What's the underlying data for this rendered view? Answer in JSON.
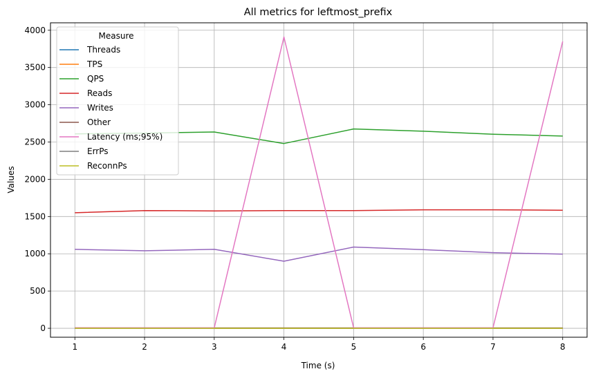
{
  "chart_data": {
    "type": "line",
    "title": "All metrics for leftmost_prefix",
    "xlabel": "Time (s)",
    "ylabel": "Values",
    "x": [
      1,
      2,
      3,
      4,
      5,
      6,
      7,
      8
    ],
    "xlim": [
      0.65,
      8.35
    ],
    "ylim": [
      -120,
      4100
    ],
    "xticks": [
      1,
      2,
      3,
      4,
      5,
      6,
      7,
      8
    ],
    "yticks": [
      0,
      500,
      1000,
      1500,
      2000,
      2500,
      3000,
      3500,
      4000
    ],
    "grid": true,
    "legend": {
      "title": "Measure",
      "placement": "top-left"
    },
    "series": [
      {
        "name": "Threads",
        "color": "#1f77b4",
        "values": [
          4,
          4,
          4,
          4,
          4,
          4,
          4,
          4
        ]
      },
      {
        "name": "TPS",
        "color": "#ff7f0e",
        "values": [
          5,
          4,
          4,
          4,
          4,
          4,
          4,
          4
        ]
      },
      {
        "name": "QPS",
        "color": "#2ca02c",
        "values": [
          2610,
          2620,
          2635,
          2480,
          2675,
          2645,
          2605,
          2580
        ]
      },
      {
        "name": "Reads",
        "color": "#d62728",
        "values": [
          1550,
          1580,
          1575,
          1580,
          1580,
          1590,
          1590,
          1585
        ]
      },
      {
        "name": "Writes",
        "color": "#9467bd",
        "values": [
          1060,
          1040,
          1060,
          900,
          1090,
          1055,
          1015,
          995
        ]
      },
      {
        "name": "Other",
        "color": "#8c564b",
        "values": [
          3,
          3,
          3,
          3,
          3,
          3,
          3,
          3
        ]
      },
      {
        "name": "Latency (ms;95%)",
        "color": "#e377c2",
        "values": [
          5,
          5,
          5,
          3910,
          5,
          5,
          5,
          3850
        ]
      },
      {
        "name": "ErrPs",
        "color": "#7f7f7f",
        "values": [
          0,
          0,
          0,
          0,
          0,
          0,
          0,
          0
        ]
      },
      {
        "name": "ReconnPs",
        "color": "#bcbd22",
        "values": [
          0,
          0,
          0,
          0,
          0,
          0,
          0,
          0
        ]
      }
    ]
  }
}
